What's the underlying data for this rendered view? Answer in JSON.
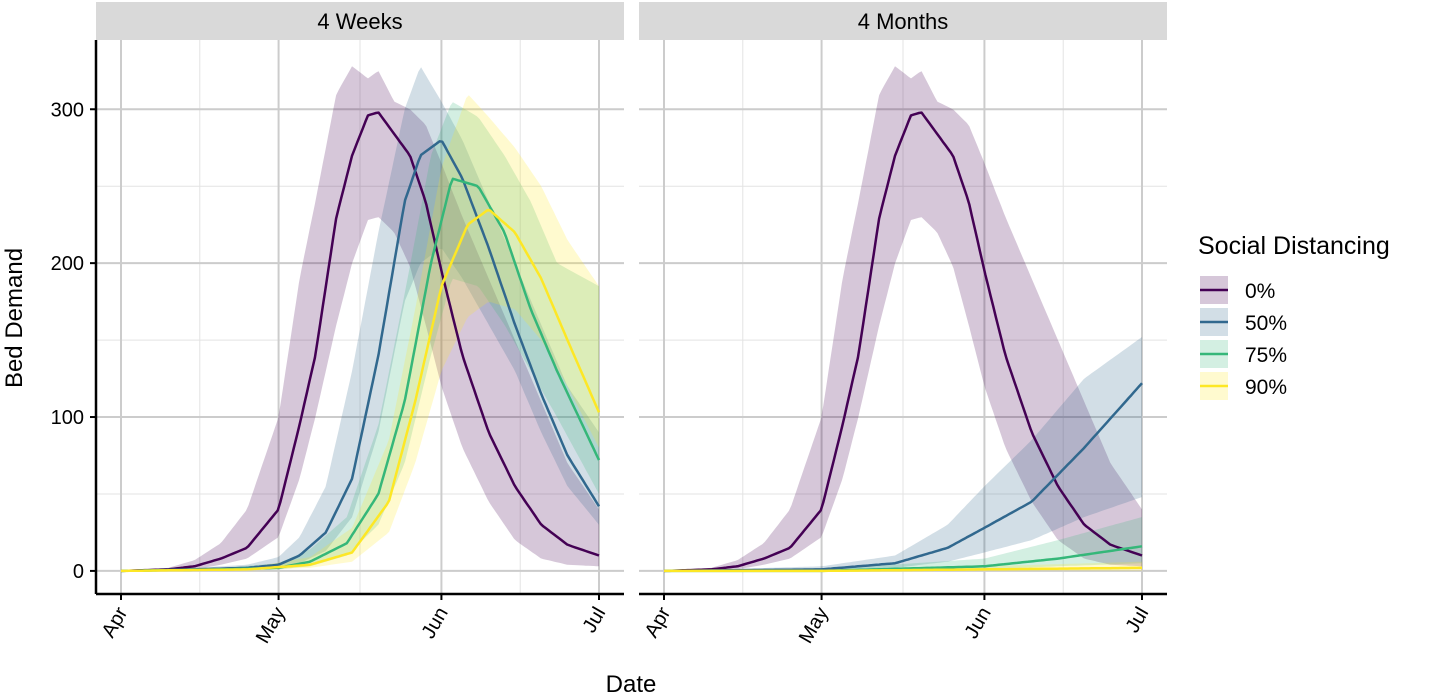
{
  "chart_data": {
    "type": "line",
    "xlabel": "Date",
    "ylabel": "Bed Demand",
    "x_ticks": [
      "Apr",
      "May",
      "Jun",
      "Jul"
    ],
    "x_tick_dates": [
      "2020-04-01",
      "2020-05-01",
      "2020-06-01",
      "2020-07-01"
    ],
    "ylim": [
      -15,
      345
    ],
    "y_ticks": [
      0,
      100,
      200,
      300
    ],
    "grid": true,
    "legend": {
      "title": "Social Distancing",
      "placement": "right",
      "entries": [
        "0%",
        "50%",
        "75%",
        "90%"
      ]
    },
    "colors": {
      "0%": "#440154",
      "50%": "#31688e",
      "75%": "#35b779",
      "90%": "#fde725"
    },
    "panels": [
      {
        "title": "4 Weeks",
        "series": [
          {
            "name": "0%",
            "x": [
              "2020-04-01",
              "2020-04-10",
              "2020-04-15",
              "2020-04-20",
              "2020-04-25",
              "2020-05-01",
              "2020-05-05",
              "2020-05-08",
              "2020-05-12",
              "2020-05-15",
              "2020-05-18",
              "2020-05-20",
              "2020-05-23",
              "2020-05-26",
              "2020-05-29",
              "2020-06-01",
              "2020-06-05",
              "2020-06-10",
              "2020-06-15",
              "2020-06-20",
              "2020-06-25",
              "2020-07-01"
            ],
            "y": [
              0,
              1,
              3,
              8,
              15,
              40,
              95,
              140,
              230,
              270,
              296,
              298,
              284,
              270,
              240,
              195,
              140,
              90,
              55,
              30,
              17,
              10
            ],
            "lower": [
              0,
              0,
              1,
              4,
              8,
              22,
              60,
              100,
              160,
              200,
              228,
              230,
              220,
              198,
              160,
              120,
              80,
              45,
              20,
              8,
              4,
              3
            ],
            "upper": [
              0,
              2,
              7,
              18,
              40,
              100,
              190,
              240,
              310,
              328,
              320,
              325,
              305,
              300,
              290,
              265,
              230,
              190,
              150,
              110,
              70,
              40
            ]
          },
          {
            "name": "50%",
            "x": [
              "2020-04-01",
              "2020-04-15",
              "2020-04-25",
              "2020-05-01",
              "2020-05-05",
              "2020-05-10",
              "2020-05-15",
              "2020-05-20",
              "2020-05-25",
              "2020-05-28",
              "2020-06-01",
              "2020-06-05",
              "2020-06-10",
              "2020-06-15",
              "2020-06-20",
              "2020-06-25",
              "2020-07-01"
            ],
            "y": [
              0,
              1,
              2,
              4,
              10,
              25,
              60,
              140,
              240,
              270,
              280,
              255,
              210,
              160,
              115,
              75,
              42
            ],
            "lower": [
              0,
              0,
              1,
              2,
              5,
              13,
              35,
              90,
              175,
              200,
              210,
              190,
              160,
              130,
              90,
              55,
              30
            ],
            "upper": [
              0,
              2,
              4,
              9,
              22,
              55,
              130,
              220,
              300,
              328,
              305,
              280,
              240,
              200,
              160,
              120,
              90
            ]
          },
          {
            "name": "75%",
            "x": [
              "2020-04-01",
              "2020-04-20",
              "2020-05-01",
              "2020-05-07",
              "2020-05-14",
              "2020-05-20",
              "2020-05-25",
              "2020-05-30",
              "2020-06-03",
              "2020-06-08",
              "2020-06-13",
              "2020-06-18",
              "2020-06-23",
              "2020-07-01"
            ],
            "y": [
              0,
              1,
              2,
              6,
              18,
              50,
              110,
              200,
              255,
              250,
              220,
              170,
              130,
              72
            ],
            "lower": [
              0,
              0,
              1,
              3,
              10,
              30,
              70,
              140,
              190,
              185,
              160,
              130,
              100,
              50
            ],
            "upper": [
              0,
              2,
              5,
              14,
              35,
              95,
              180,
              270,
              305,
              295,
              270,
              240,
              200,
              185
            ]
          },
          {
            "name": "90%",
            "x": [
              "2020-04-01",
              "2020-04-25",
              "2020-05-07",
              "2020-05-15",
              "2020-05-22",
              "2020-05-27",
              "2020-06-01",
              "2020-06-06",
              "2020-06-10",
              "2020-06-15",
              "2020-06-20",
              "2020-06-25",
              "2020-07-01"
            ],
            "y": [
              0,
              1,
              4,
              12,
              45,
              110,
              185,
              225,
              235,
              220,
              190,
              150,
              103
            ],
            "lower": [
              0,
              0,
              2,
              6,
              25,
              70,
              130,
              165,
              175,
              170,
              150,
              120,
              80
            ],
            "upper": [
              0,
              2,
              9,
              28,
              85,
              170,
              262,
              310,
              295,
              275,
              250,
              215,
              185
            ]
          }
        ]
      },
      {
        "title": "4 Months",
        "series": [
          {
            "name": "0%",
            "x": [
              "2020-04-01",
              "2020-04-10",
              "2020-04-15",
              "2020-04-20",
              "2020-04-25",
              "2020-05-01",
              "2020-05-05",
              "2020-05-08",
              "2020-05-12",
              "2020-05-15",
              "2020-05-18",
              "2020-05-20",
              "2020-05-23",
              "2020-05-26",
              "2020-05-29",
              "2020-06-01",
              "2020-06-05",
              "2020-06-10",
              "2020-06-15",
              "2020-06-20",
              "2020-06-25",
              "2020-07-01"
            ],
            "y": [
              0,
              1,
              3,
              8,
              15,
              40,
              95,
              140,
              230,
              270,
              296,
              298,
              284,
              270,
              240,
              195,
              140,
              90,
              55,
              30,
              17,
              10
            ],
            "lower": [
              0,
              0,
              1,
              4,
              8,
              22,
              60,
              100,
              160,
              200,
              228,
              230,
              220,
              198,
              160,
              120,
              80,
              45,
              20,
              8,
              4,
              3
            ],
            "upper": [
              0,
              2,
              7,
              18,
              40,
              100,
              190,
              240,
              310,
              328,
              320,
              325,
              305,
              300,
              290,
              265,
              230,
              190,
              150,
              110,
              70,
              40
            ]
          },
          {
            "name": "50%",
            "x": [
              "2020-04-01",
              "2020-05-01",
              "2020-05-15",
              "2020-05-25",
              "2020-06-01",
              "2020-06-10",
              "2020-06-20",
              "2020-07-01"
            ],
            "y": [
              0,
              1,
              5,
              15,
              28,
              45,
              80,
              122
            ],
            "lower": [
              0,
              0,
              2,
              6,
              12,
              20,
              35,
              48
            ],
            "upper": [
              0,
              3,
              10,
              30,
              55,
              85,
              125,
              152
            ]
          },
          {
            "name": "75%",
            "x": [
              "2020-04-01",
              "2020-05-01",
              "2020-06-01",
              "2020-06-15",
              "2020-07-01"
            ],
            "y": [
              0,
              0,
              3,
              8,
              16
            ],
            "lower": [
              0,
              0,
              1,
              3,
              5
            ],
            "upper": [
              0,
              1,
              8,
              20,
              35
            ]
          },
          {
            "name": "90%",
            "x": [
              "2020-04-01",
              "2020-05-01",
              "2020-06-01",
              "2020-07-01"
            ],
            "y": [
              0,
              0,
              1,
              2
            ],
            "lower": [
              0,
              0,
              0,
              0
            ],
            "upper": [
              0,
              1,
              3,
              6
            ]
          }
        ]
      }
    ]
  }
}
